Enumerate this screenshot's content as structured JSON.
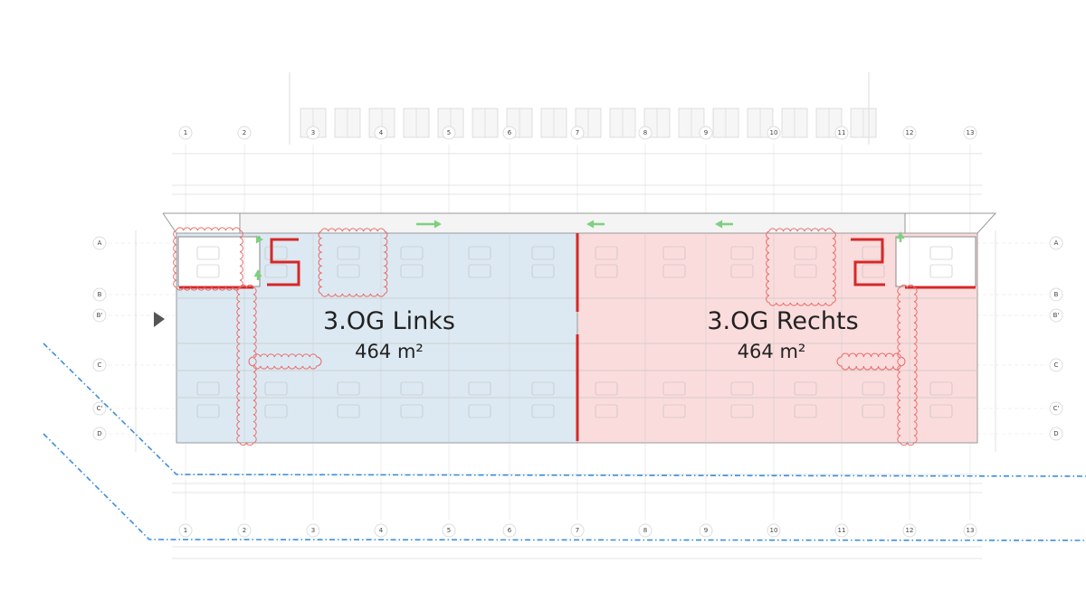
{
  "plan": {
    "zones": [
      {
        "name": "3.OG Links",
        "area": "464 m²",
        "color": "#dce9f2"
      },
      {
        "name": "3.OG Rechts",
        "area": "464 m²",
        "color": "#fbdcdc"
      }
    ],
    "grid_columns": [
      "1",
      "2",
      "3",
      "4",
      "5",
      "6",
      "7",
      "8",
      "9",
      "10",
      "11",
      "12",
      "13"
    ],
    "grid_rows": [
      "A",
      "B",
      "B'",
      "C",
      "C'",
      "D"
    ],
    "colors": {
      "divider": "#d62828",
      "revision_cloud": "#e86a6a",
      "escape_arrow": "#7fcf7f",
      "boundary_dashed": "#3b8fe0",
      "linework": "#b5b5b5"
    },
    "icons": [
      "escape-route-arrow-icon",
      "north-arrow-icon"
    ]
  }
}
